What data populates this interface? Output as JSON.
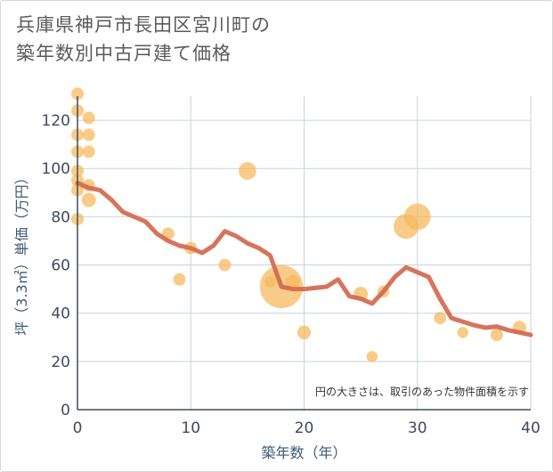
{
  "chart_data": {
    "type": "scatter",
    "title": [
      "兵庫県神戸市長田区宮川町の",
      "築年数別中古戸建て価格"
    ],
    "xlabel": "築年数（年）",
    "ylabel": "坪（3.3㎡）単価（万円）",
    "note": "円の大きさは、取引のあった物件面積を示す",
    "xlim": [
      0,
      40
    ],
    "ylim": [
      0,
      130
    ],
    "x_ticks": [
      0,
      10,
      20,
      30,
      40
    ],
    "y_ticks": [
      0,
      20,
      40,
      60,
      80,
      100,
      120
    ],
    "grid": true,
    "colors": {
      "bubble": "#f5b95a",
      "line": "#d4684d",
      "grid": "#c9d3dd",
      "axis": "#3f4a5c"
    },
    "series": [
      {
        "kind": "bubble",
        "points": [
          {
            "x": 0,
            "y": 131,
            "size": 1
          },
          {
            "x": 0,
            "y": 124,
            "size": 1
          },
          {
            "x": 0,
            "y": 114,
            "size": 1
          },
          {
            "x": 0,
            "y": 107,
            "size": 1
          },
          {
            "x": 0,
            "y": 99,
            "size": 1
          },
          {
            "x": 0,
            "y": 95,
            "size": 1
          },
          {
            "x": 0,
            "y": 91,
            "size": 1
          },
          {
            "x": 0,
            "y": 79,
            "size": 1
          },
          {
            "x": 1,
            "y": 121,
            "size": 1
          },
          {
            "x": 1,
            "y": 114,
            "size": 1
          },
          {
            "x": 1,
            "y": 107,
            "size": 1
          },
          {
            "x": 1,
            "y": 93,
            "size": 1
          },
          {
            "x": 1,
            "y": 87,
            "size": 1.3
          },
          {
            "x": 8,
            "y": 73,
            "size": 1
          },
          {
            "x": 9,
            "y": 54,
            "size": 1
          },
          {
            "x": 10,
            "y": 67,
            "size": 1
          },
          {
            "x": 13,
            "y": 60,
            "size": 1
          },
          {
            "x": 15,
            "y": 99,
            "size": 2
          },
          {
            "x": 17,
            "y": 53,
            "size": 0.8
          },
          {
            "x": 18,
            "y": 51,
            "size": 12
          },
          {
            "x": 19,
            "y": 53,
            "size": 1.3
          },
          {
            "x": 20,
            "y": 32,
            "size": 1.2
          },
          {
            "x": 25,
            "y": 48,
            "size": 1.3
          },
          {
            "x": 26,
            "y": 22,
            "size": 0.8
          },
          {
            "x": 27,
            "y": 49,
            "size": 0.9
          },
          {
            "x": 29,
            "y": 76,
            "size": 4
          },
          {
            "x": 30,
            "y": 80,
            "size": 4.5
          },
          {
            "x": 32,
            "y": 38,
            "size": 1
          },
          {
            "x": 34,
            "y": 32,
            "size": 0.8
          },
          {
            "x": 37,
            "y": 31,
            "size": 1
          },
          {
            "x": 39,
            "y": 34,
            "size": 1.2
          }
        ]
      },
      {
        "kind": "line",
        "x": [
          0,
          1,
          2,
          3,
          4,
          5,
          6,
          7,
          8,
          9,
          10,
          11,
          12,
          13,
          14,
          15,
          16,
          17,
          18,
          19,
          20,
          21,
          22,
          23,
          24,
          25,
          26,
          27,
          28,
          29,
          30,
          31,
          32,
          33,
          34,
          35,
          36,
          37,
          38,
          39,
          40
        ],
        "y": [
          94,
          92,
          91,
          87,
          82,
          80,
          78,
          73,
          70,
          68,
          67,
          65,
          68,
          74,
          72,
          69,
          67,
          64,
          51,
          50,
          50,
          50.5,
          51,
          54,
          47,
          46,
          44,
          49,
          55,
          59,
          57,
          55,
          46,
          38,
          36.5,
          35,
          34,
          34.5,
          33,
          32,
          31
        ]
      }
    ]
  }
}
